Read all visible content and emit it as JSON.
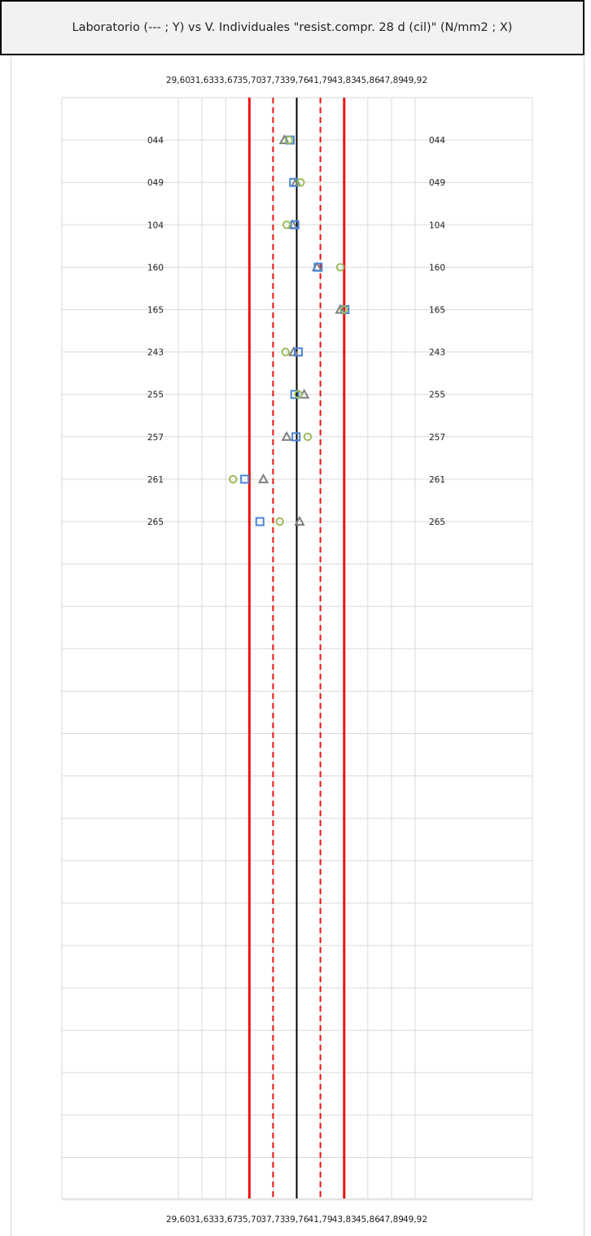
{
  "chart_data": {
    "type": "scatter",
    "title": "Laboratorio (--- ; Y) vs V. Individuales \"resist.compr. 28 d (cil)\" (N/mm2 ; X)",
    "xticks": [
      "29,60",
      "31,63",
      "33,67",
      "35,70",
      "37,73",
      "39,76",
      "41,79",
      "43,83",
      "45,86",
      "47,89",
      "49,92"
    ],
    "xlim": [
      29.6,
      49.92
    ],
    "categories": [
      "044",
      "049",
      "104",
      "160",
      "165",
      "243",
      "255",
      "257",
      "261",
      "265",
      "",
      "",
      "",
      "",
      "",
      "",
      "",
      "",
      "",
      "",
      "",
      "",
      "",
      "",
      "",
      ""
    ],
    "reference_lines": {
      "center": 39.76,
      "inner": [
        37.73,
        41.79
      ],
      "outer": [
        35.7,
        43.83
      ]
    },
    "series": [
      {
        "marker": "triangle",
        "values": [
          38.7,
          39.7,
          39.4,
          41.5,
          43.5,
          39.5,
          40.4,
          38.9,
          36.9,
          40.0
        ]
      },
      {
        "marker": "square",
        "values": [
          39.2,
          39.5,
          39.6,
          41.6,
          43.9,
          39.9,
          39.6,
          39.7,
          35.3,
          36.6
        ]
      },
      {
        "marker": "circle",
        "values": [
          39.1,
          40.1,
          38.9,
          43.5,
          43.8,
          38.8,
          39.9,
          40.7,
          34.3,
          38.3
        ]
      }
    ],
    "colors": {
      "triangle": "#7f7f7f",
      "square": "#4a86d6",
      "circle": "#9bbb59",
      "center_line": "#000000",
      "limit_lines": "#ee1111",
      "grid": "#d9d9d9"
    },
    "grid": true,
    "legend": "none"
  }
}
